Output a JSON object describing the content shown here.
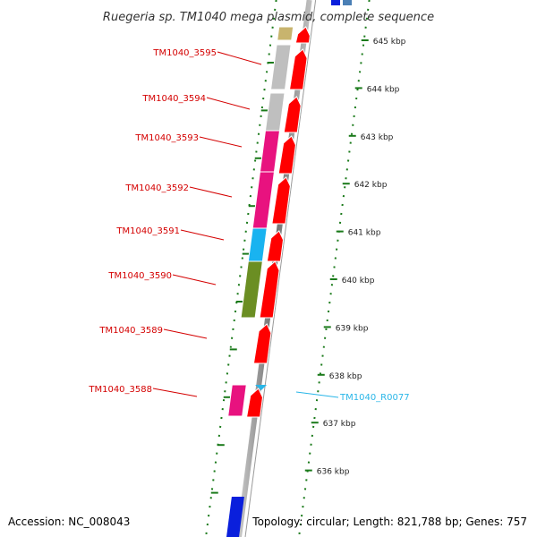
{
  "title": "Ruegeria sp. TM1040 mega plasmid, complete sequence",
  "footer": {
    "accession": "Accession: NC_008043",
    "topology": "Topology: circular; Length: 821,788 bp; Genes: 757"
  },
  "colors": {
    "forward_gene": "#ff0000",
    "backbone": "#888888",
    "gene_label": "#d40000",
    "rna_label": "#29b6e8",
    "tick": "#1a7a1a",
    "tan": "#c8b46e",
    "grey": "#bfbfbf",
    "magenta": "#e8127f",
    "cyan": "#19b3f0",
    "olive": "#6b8e23",
    "blue": "#0a1fdc",
    "steel": "#4a7fb5"
  },
  "ruler": {
    "unit": "kbp",
    "labels": [
      "645 kbp",
      "644 kbp",
      "643 kbp",
      "642 kbp",
      "641 kbp",
      "640 kbp",
      "639 kbp",
      "638 kbp",
      "637 kbp",
      "636 kbp"
    ]
  },
  "genes": [
    {
      "id": "TM1040_3595",
      "feature_color": "grey"
    },
    {
      "id": "TM1040_3594",
      "feature_color": "grey"
    },
    {
      "id": "TM1040_3593",
      "feature_color": "magenta"
    },
    {
      "id": "TM1040_3592",
      "feature_color": "magenta"
    },
    {
      "id": "TM1040_3591",
      "feature_color": "cyan"
    },
    {
      "id": "TM1040_3590",
      "feature_color": "olive"
    },
    {
      "id": "TM1040_3589",
      "feature_color": "none"
    },
    {
      "id": "TM1040_3588",
      "feature_color": "magenta"
    }
  ],
  "rna": {
    "id": "TM1040_R0077"
  }
}
